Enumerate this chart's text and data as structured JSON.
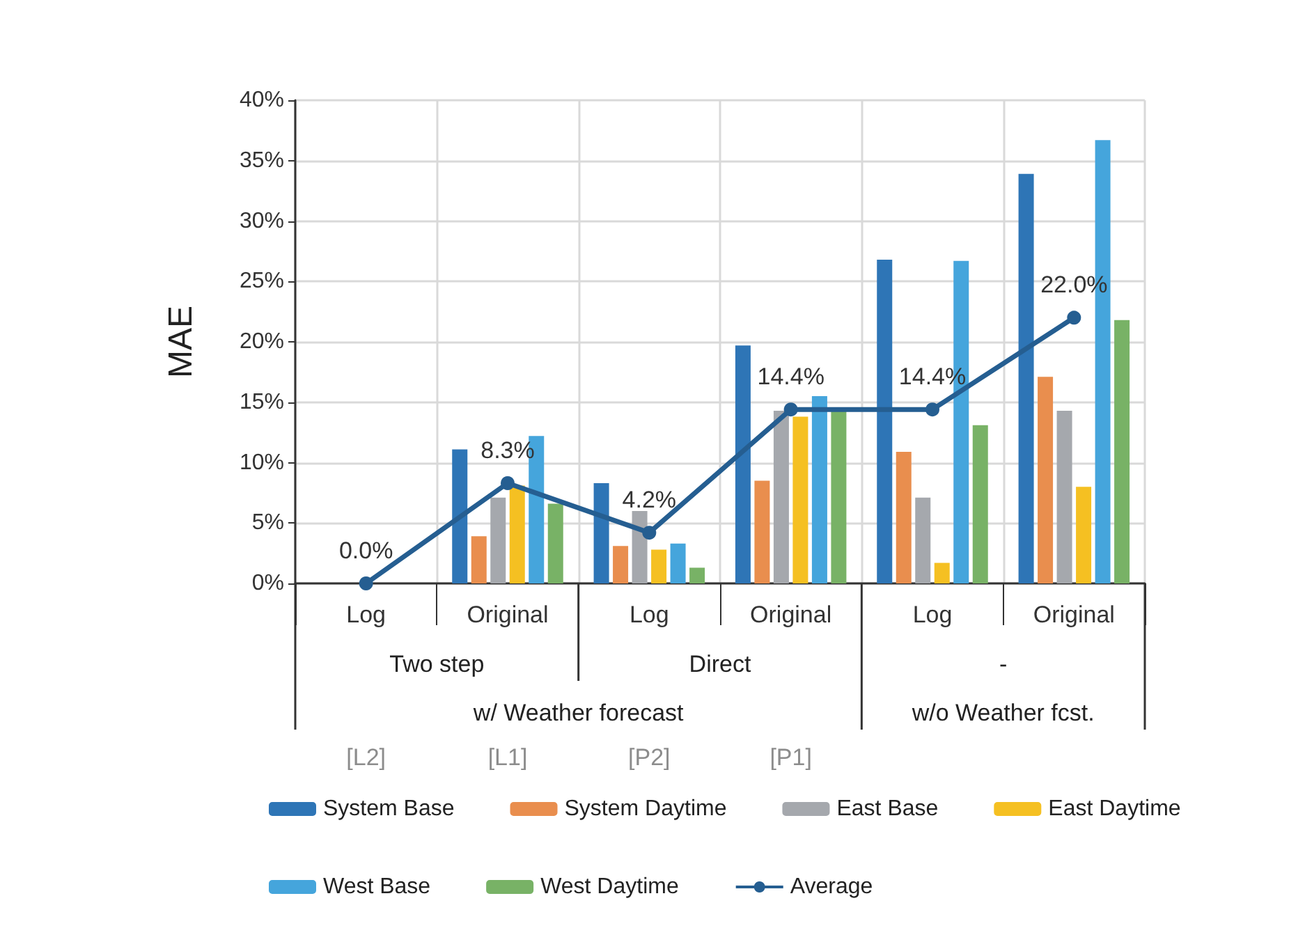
{
  "chart_data": {
    "type": "bar",
    "ylabel": "MAE",
    "categories": [
      "Log",
      "Original",
      "Log",
      "Original",
      "Log",
      "Original"
    ],
    "series": [
      {
        "name": "System Base",
        "color": "#2e75b6",
        "values": [
          null,
          11.1,
          8.3,
          19.7,
          26.8,
          33.9
        ]
      },
      {
        "name": "System Daytime",
        "color": "#e98e4e",
        "values": [
          null,
          3.9,
          3.1,
          8.5,
          10.9,
          17.1
        ]
      },
      {
        "name": "East Base",
        "color": "#a5a8ad",
        "values": [
          null,
          7.1,
          6.0,
          14.3,
          7.1,
          14.3
        ]
      },
      {
        "name": "East Daytime",
        "color": "#f5c022",
        "values": [
          null,
          8.1,
          2.8,
          13.8,
          1.7,
          8.0
        ]
      },
      {
        "name": "West Base",
        "color": "#45a5dc",
        "values": [
          null,
          12.2,
          3.3,
          15.5,
          26.7,
          36.7
        ]
      },
      {
        "name": "West Daytime",
        "color": "#78b266",
        "values": [
          null,
          6.6,
          1.3,
          14.3,
          13.1,
          21.8
        ]
      },
      {
        "name": "Average",
        "type": "line",
        "color": "#255e91",
        "marker": "circle",
        "values": [
          0.0,
          8.3,
          4.2,
          14.4,
          14.4,
          22.0
        ],
        "value_labels": [
          "0.0%",
          "8.3%",
          "4.2%",
          "14.4%",
          "14.4%",
          "22.0%"
        ]
      }
    ],
    "ylim": [
      0,
      40
    ],
    "yticks": [
      {
        "value": 0,
        "label": "0%"
      },
      {
        "value": 5,
        "label": "5%"
      },
      {
        "value": 10,
        "label": "10%"
      },
      {
        "value": 15,
        "label": "15%"
      },
      {
        "value": 20,
        "label": "20%"
      },
      {
        "value": 25,
        "label": "25%"
      },
      {
        "value": 30,
        "label": "30%"
      },
      {
        "value": 35,
        "label": "35%"
      },
      {
        "value": 40,
        "label": "40%"
      }
    ],
    "annotations": [
      "Two step",
      "Direct",
      "-",
      "w/ Weather forecast",
      "w/o Weather fcst.",
      "[L2]",
      "[L1]",
      "[P2]",
      "[P1]"
    ],
    "grid": true,
    "legend": "bottom"
  }
}
